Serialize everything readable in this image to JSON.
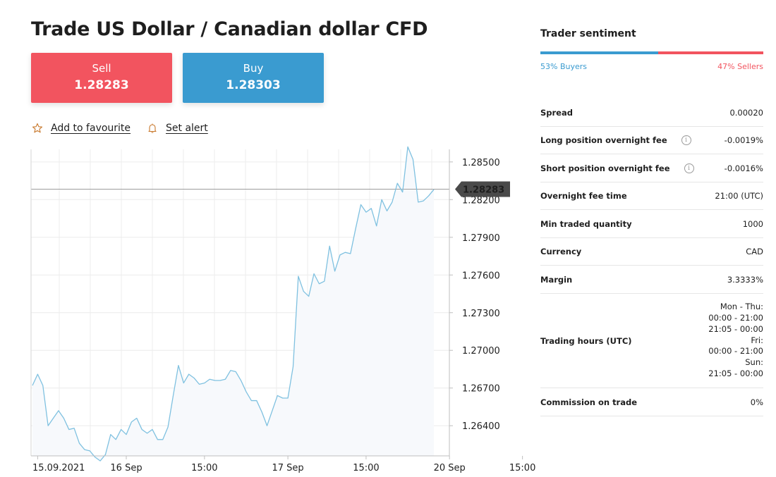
{
  "title": "Trade US Dollar / Canadian dollar CFD",
  "sell": {
    "label": "Sell",
    "price": "1.28283"
  },
  "buy": {
    "label": "Buy",
    "price": "1.28303"
  },
  "actions": {
    "favourite": "Add to favourite",
    "alert": "Set alert"
  },
  "icons": {
    "favourite": "star-icon",
    "alert": "bell-icon",
    "info": "info-icon"
  },
  "colors": {
    "sell": "#f2545f",
    "buy": "#3a9bd0",
    "line": "#7fc1e0",
    "fill": "#f7f9fc",
    "marker": "#4a4a4a"
  },
  "sentiment": {
    "title": "Trader sentiment",
    "buyers_pct": 53,
    "sellers_pct": 47,
    "buyers_label": "53% Buyers",
    "sellers_label": "47% Sellers"
  },
  "info": [
    {
      "key": "Spread",
      "value": "0.00020",
      "info": false
    },
    {
      "key": "Long position overnight fee",
      "value": "-0.0019%",
      "info": true
    },
    {
      "key": "Short position overnight fee",
      "value": "-0.0016%",
      "info": true
    },
    {
      "key": "Overnight fee time",
      "value": "21:00 (UTC)",
      "info": false
    },
    {
      "key": "Min traded quantity",
      "value": "1000",
      "info": false
    },
    {
      "key": "Currency",
      "value": "CAD",
      "info": false
    },
    {
      "key": "Margin",
      "value": "3.3333%",
      "info": false
    },
    {
      "key": "Trading hours (UTC)",
      "value": [
        "Mon - Thu:",
        "00:00 - 21:00",
        "21:05 - 00:00",
        "Fri:",
        "00:00 - 21:00",
        "Sun:",
        "21:05 - 00:00"
      ],
      "info": false
    },
    {
      "key": "Commission on trade",
      "value": "0%",
      "info": false
    }
  ],
  "chart_data": {
    "type": "line",
    "ylim": [
      1.2616,
      1.286
    ],
    "y_ticks": [
      "1.28500",
      "1.28200",
      "1.27900",
      "1.27600",
      "1.27300",
      "1.27000",
      "1.26700",
      "1.26400"
    ],
    "x_ticks": [
      "15.09.2021",
      "16 Sep",
      "15:00",
      "17 Sep",
      "15:00",
      "20 Sep",
      "15:00"
    ],
    "x_tick_index": [
      1,
      18,
      33,
      49,
      64,
      80,
      94
    ],
    "current_price": "1.28283",
    "current_value": 1.28283,
    "grid": true,
    "series": [
      {
        "values": [
          1.2672,
          1.2681,
          1.2672,
          1.264,
          1.2646,
          1.2652,
          1.2646,
          1.2637,
          1.2638,
          1.2626,
          1.2621,
          1.262,
          1.2615,
          1.2612,
          1.2617,
          1.2633,
          1.2629,
          1.2637,
          1.2633,
          1.2643,
          1.2646,
          1.2637,
          1.2634,
          1.2637,
          1.2629,
          1.2629,
          1.2639,
          1.2664,
          1.2688,
          1.2674,
          1.2681,
          1.2678,
          1.2673,
          1.2674,
          1.2677,
          1.2676,
          1.2676,
          1.2677,
          1.2684,
          1.2683,
          1.2676,
          1.2667,
          1.266,
          1.266,
          1.2651,
          1.264,
          1.2652,
          1.2664,
          1.2662,
          1.2662,
          1.2687,
          1.2759,
          1.2747,
          1.2743,
          1.2761,
          1.2753,
          1.2755,
          1.2783,
          1.2763,
          1.2776,
          1.2778,
          1.2777,
          1.2797,
          1.2816,
          1.281,
          1.2813,
          1.2799,
          1.282,
          1.2811,
          1.2818,
          1.2833,
          1.2826,
          1.2862,
          1.2852,
          1.2818,
          1.2819,
          1.2823,
          1.2828
        ]
      }
    ]
  }
}
